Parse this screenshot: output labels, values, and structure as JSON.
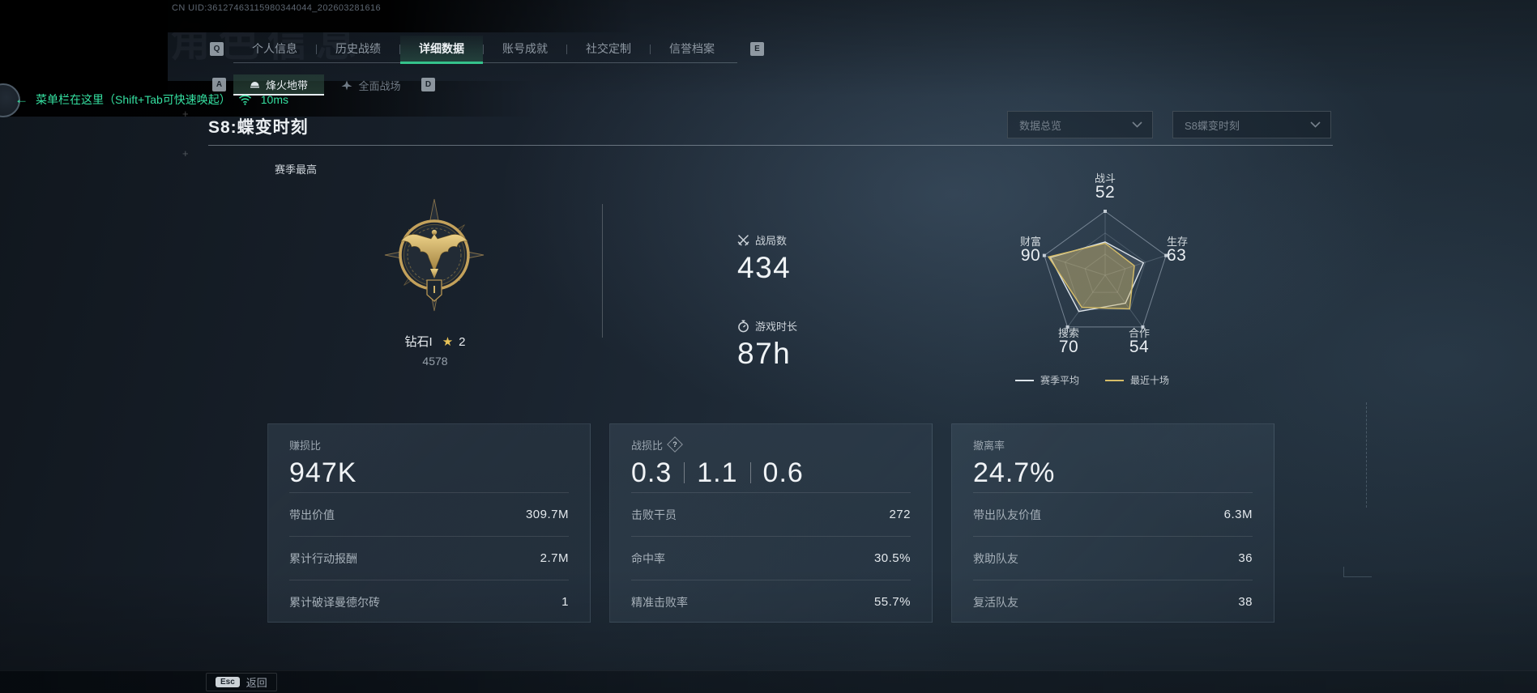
{
  "colors": {
    "accent_green": "#35e0a1",
    "gold": "#d3ba66",
    "tab_underline": "#35c28c"
  },
  "header": {
    "uid": "CN UID:36127463115980344044_202603281616",
    "ghost_title": "角色信息"
  },
  "menu_hint": {
    "arrow": "←",
    "text": "菜单栏在这里（Shift+Tab可快速唤起）",
    "ping": "10ms"
  },
  "tabs": {
    "key_prev": "Q",
    "key_next": "E",
    "items": [
      "个人信息",
      "历史战绩",
      "详细数据",
      "账号成就",
      "社交定制",
      "信誉档案"
    ],
    "active": "详细数据"
  },
  "subtabs": {
    "key_prev": "A",
    "key_next": "D",
    "items": [
      "烽火地带",
      "全面战场"
    ],
    "active": "烽火地带"
  },
  "season": {
    "title": "S8:蝶变时刻",
    "best_label": "赛季最高"
  },
  "dropdowns": [
    {
      "value": "数据总览"
    },
    {
      "value": "S8蝶变时刻"
    }
  ],
  "rank": {
    "tier": "钻石I",
    "star": "★",
    "star_level": "2",
    "score": "4578",
    "medal_numeral": "I"
  },
  "overview": {
    "battles": {
      "label": "战局数",
      "value": "434"
    },
    "playtime": {
      "label": "游戏时长",
      "value": "87h"
    }
  },
  "chart_data": {
    "type": "radar",
    "categories": [
      "战斗",
      "生存",
      "合作",
      "搜索",
      "财富"
    ],
    "axis_values": [
      52,
      63,
      54,
      70,
      90
    ],
    "max": 100,
    "series": [
      {
        "name": "赛季平均",
        "values": [
          52,
          63,
          54,
          70,
          90
        ],
        "color": "#dde4ea",
        "fill": "rgba(222,230,238,0.10)"
      },
      {
        "name": "最近十场",
        "values": [
          50,
          48,
          65,
          62,
          93
        ],
        "color": "#d6bd68",
        "fill": "rgba(206,182,102,0.42)"
      }
    ],
    "legend_position": "bottom",
    "grid": true
  },
  "cards": [
    {
      "label": "赚损比",
      "value": "947K",
      "rows": [
        {
          "label": "带出价值",
          "value": "309.7M"
        },
        {
          "label": "累计行动报酬",
          "value": "2.7M"
        },
        {
          "label": "累计破译曼德尔砖",
          "value": "1"
        }
      ]
    },
    {
      "label": "战损比",
      "help": "?",
      "value_parts": [
        "0.3",
        "1.1",
        "0.6"
      ],
      "rows": [
        {
          "label": "击败干员",
          "value": "272"
        },
        {
          "label": "命中率",
          "value": "30.5%"
        },
        {
          "label": "精准击败率",
          "value": "55.7%"
        }
      ]
    },
    {
      "label": "撤离率",
      "value": "24.7%",
      "rows": [
        {
          "label": "带出队友价值",
          "value": "6.3M"
        },
        {
          "label": "救助队友",
          "value": "36"
        },
        {
          "label": "复活队友",
          "value": "38"
        }
      ]
    }
  ],
  "footer": {
    "key": "Esc",
    "label": "返回"
  }
}
